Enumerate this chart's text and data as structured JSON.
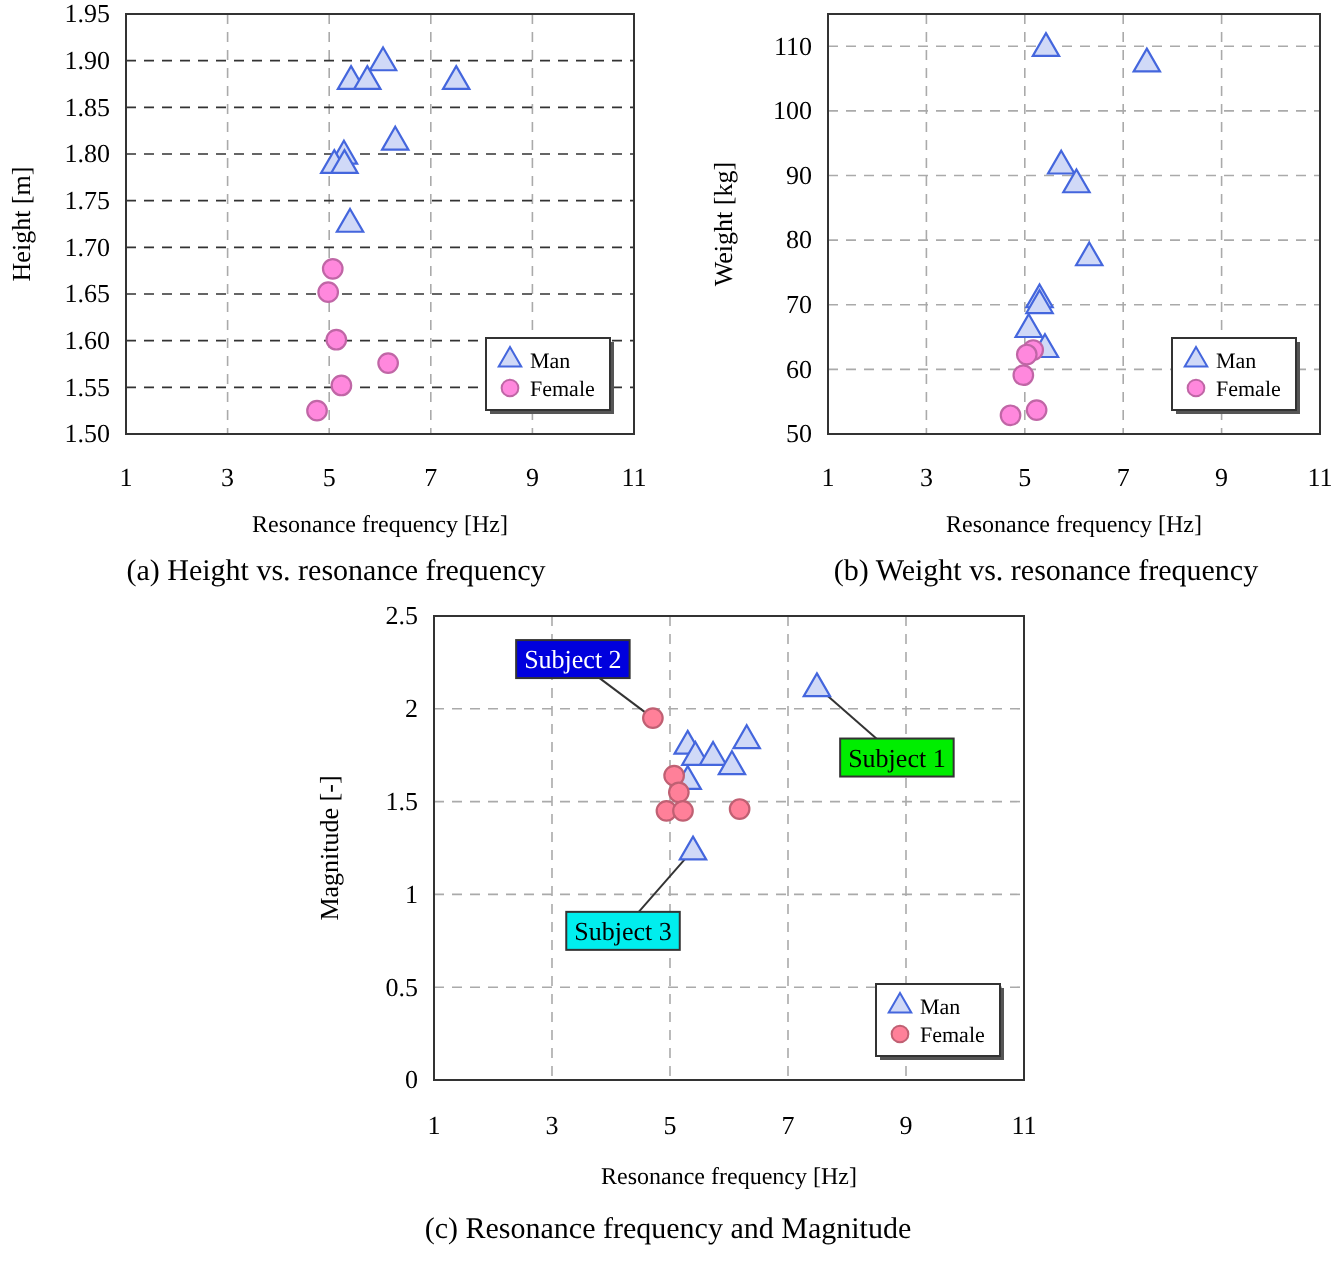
{
  "chart_data": [
    {
      "type": "scatter",
      "title": "(a) Height vs. resonance frequency",
      "xlabel": "Resonance frequency [Hz]",
      "ylabel": "Height [m]",
      "xlim": [
        1,
        11
      ],
      "xticks": [
        1,
        3,
        5,
        7,
        9,
        11
      ],
      "ylim": [
        1.5,
        1.95
      ],
      "yticks": [
        {
          "value": 1.5,
          "label": "1.50"
        },
        {
          "value": 1.55,
          "label": "1.55"
        },
        {
          "value": 1.6,
          "label": "1.60"
        },
        {
          "value": 1.65,
          "label": "1.65"
        },
        {
          "value": 1.7,
          "label": "1.70"
        },
        {
          "value": 1.75,
          "label": "1.75"
        },
        {
          "value": 1.8,
          "label": "1.80"
        },
        {
          "value": 1.85,
          "label": "1.85"
        },
        {
          "value": 1.9,
          "label": "1.90"
        },
        {
          "value": 1.95,
          "label": "1.95"
        }
      ],
      "grid": true,
      "legend": "bottom right",
      "series": [
        {
          "name": "Man",
          "color": "#4466dd",
          "marker": "triangle",
          "x": [
            6.06,
            5.43,
            5.75,
            7.5,
            6.3,
            5.29,
            5.1,
            5.3,
            5.41
          ],
          "values": [
            1.9,
            1.88,
            1.88,
            1.88,
            1.815,
            1.8,
            1.79,
            1.79,
            1.727
          ]
        },
        {
          "name": "Female",
          "color": "#ff88dd",
          "marker": "circle",
          "x": [
            5.07,
            4.98,
            5.14,
            6.16,
            5.24,
            4.76
          ],
          "values": [
            1.677,
            1.652,
            1.601,
            1.576,
            1.552,
            1.525
          ]
        }
      ]
    },
    {
      "type": "scatter",
      "title": "(b) Weight vs. resonance frequency",
      "xlabel": "Resonance frequency [Hz]",
      "ylabel": "Weight [kg]",
      "xlim": [
        1,
        11
      ],
      "xticks": [
        1,
        3,
        5,
        7,
        9,
        11
      ],
      "ylim": [
        50,
        115
      ],
      "yticks": [
        50,
        60,
        70,
        80,
        90,
        100,
        110
      ],
      "grid": true,
      "legend": "bottom right",
      "series": [
        {
          "name": "Man",
          "color": "#4466dd",
          "marker": "triangle",
          "x": [
            5.43,
            7.48,
            5.74,
            6.05,
            6.31,
            5.3,
            5.3,
            5.08,
            5.41
          ],
          "values": [
            110,
            107.6,
            91.8,
            88.9,
            77.6,
            71.1,
            70.2,
            66.5,
            63.4
          ]
        },
        {
          "name": "Female",
          "color": "#ff88dd",
          "marker": "circle",
          "x": [
            5.17,
            4.97,
            5.24,
            4.71,
            5.04
          ],
          "values": [
            63,
            59.1,
            53.7,
            52.9,
            62.3
          ]
        }
      ]
    },
    {
      "type": "scatter",
      "title": "(c) Resonance frequency and Magnitude",
      "xlabel": "Resonance frequency [Hz]",
      "ylabel": "Magnitude [-]",
      "xlim": [
        1,
        11
      ],
      "xticks": [
        1,
        3,
        5,
        7,
        9,
        11
      ],
      "ylim": [
        0,
        2.5
      ],
      "yticks": [
        0,
        0.5,
        1,
        1.5,
        2,
        2.5
      ],
      "grid": true,
      "legend": "bottom right",
      "annotations": [
        {
          "text": "Subject 1",
          "x": 7.49,
          "y": 2.12
        },
        {
          "text": "Subject 2",
          "x": 4.71,
          "y": 1.95
        },
        {
          "text": "Subject 3",
          "x": 5.39,
          "y": 1.24
        }
      ],
      "series": [
        {
          "name": "Man",
          "color": "#4466dd",
          "marker": "triangle",
          "x": [
            7.49,
            6.3,
            5.3,
            5.43,
            5.73,
            6.05,
            5.3,
            5.39
          ],
          "values": [
            2.12,
            1.84,
            1.81,
            1.75,
            1.75,
            1.7,
            1.62,
            1.24
          ]
        },
        {
          "name": "Female",
          "color": "#ff8099",
          "marker": "circle",
          "x": [
            4.71,
            5.07,
            5.15,
            4.94,
            5.22,
            6.18
          ],
          "values": [
            1.95,
            1.64,
            1.55,
            1.45,
            1.45,
            1.46
          ]
        }
      ]
    }
  ]
}
